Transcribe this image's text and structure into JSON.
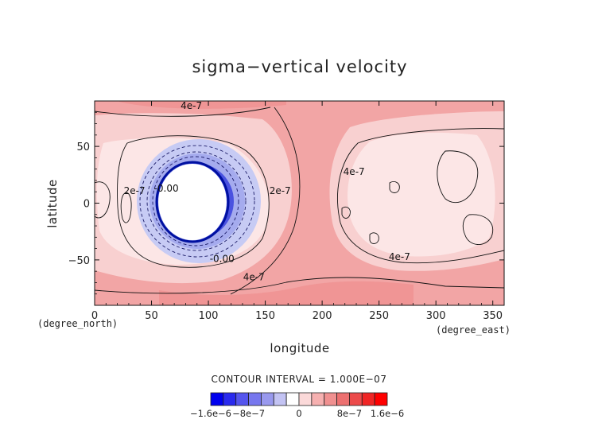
{
  "chart_data": {
    "type": "contour",
    "title": "sigma−vertical velocity",
    "xlabel": "longitude",
    "ylabel": "latitude",
    "x_unit": "(degree_east)",
    "y_unit": "(degree_north)",
    "xlim": [
      0,
      360
    ],
    "ylim": [
      -90,
      90
    ],
    "x_ticks": [
      0,
      50,
      100,
      150,
      200,
      250,
      300,
      350
    ],
    "y_ticks": [
      -50,
      0,
      50
    ],
    "y_tick_labels": [
      "−50",
      "0",
      "50"
    ],
    "contour_interval_text": "CONTOUR INTERVAL = 1.000E−07",
    "contour_labels": [
      {
        "text": "4e-7",
        "lon": 85,
        "lat": 83
      },
      {
        "text": "4e-7",
        "lon": 140,
        "lat": -68
      },
      {
        "text": "2e-7",
        "lon": 35,
        "lat": 8
      },
      {
        "text": "2e-7",
        "lon": 163,
        "lat": 8
      },
      {
        "text": "4e-7",
        "lon": 228,
        "lat": 25
      },
      {
        "text": "4e-7",
        "lon": 268,
        "lat": -50
      },
      {
        "text": "-0.00",
        "lon": 112,
        "lat": -52
      },
      {
        "text": "-0.00",
        "lon": 63,
        "lat": 10
      }
    ],
    "colorbar": {
      "colors": [
        "#0000ee",
        "#2a2aee",
        "#5555ee",
        "#7777ee",
        "#9999ee",
        "#c3c3f3",
        "#ffffff",
        "#fbd9d9",
        "#f6b0b0",
        "#f09090",
        "#ec7070",
        "#ec4a4a",
        "#f02525",
        "#ff0000"
      ],
      "tick_labels": [
        "−1.6e−6",
        "−8e−7",
        "0",
        "8e−7",
        "1.6e−6"
      ],
      "tick_values": [
        -1.6e-06,
        -8e-07,
        0,
        8e-07,
        1.6e-06
      ]
    },
    "features": [
      {
        "kind": "undefined_region",
        "shape": "circle",
        "center_lon": 82,
        "center_lat": 2,
        "radius_deg": 29
      },
      {
        "kind": "negative_band",
        "description": "blue ring of negative velocity around the undefined circle"
      }
    ]
  }
}
